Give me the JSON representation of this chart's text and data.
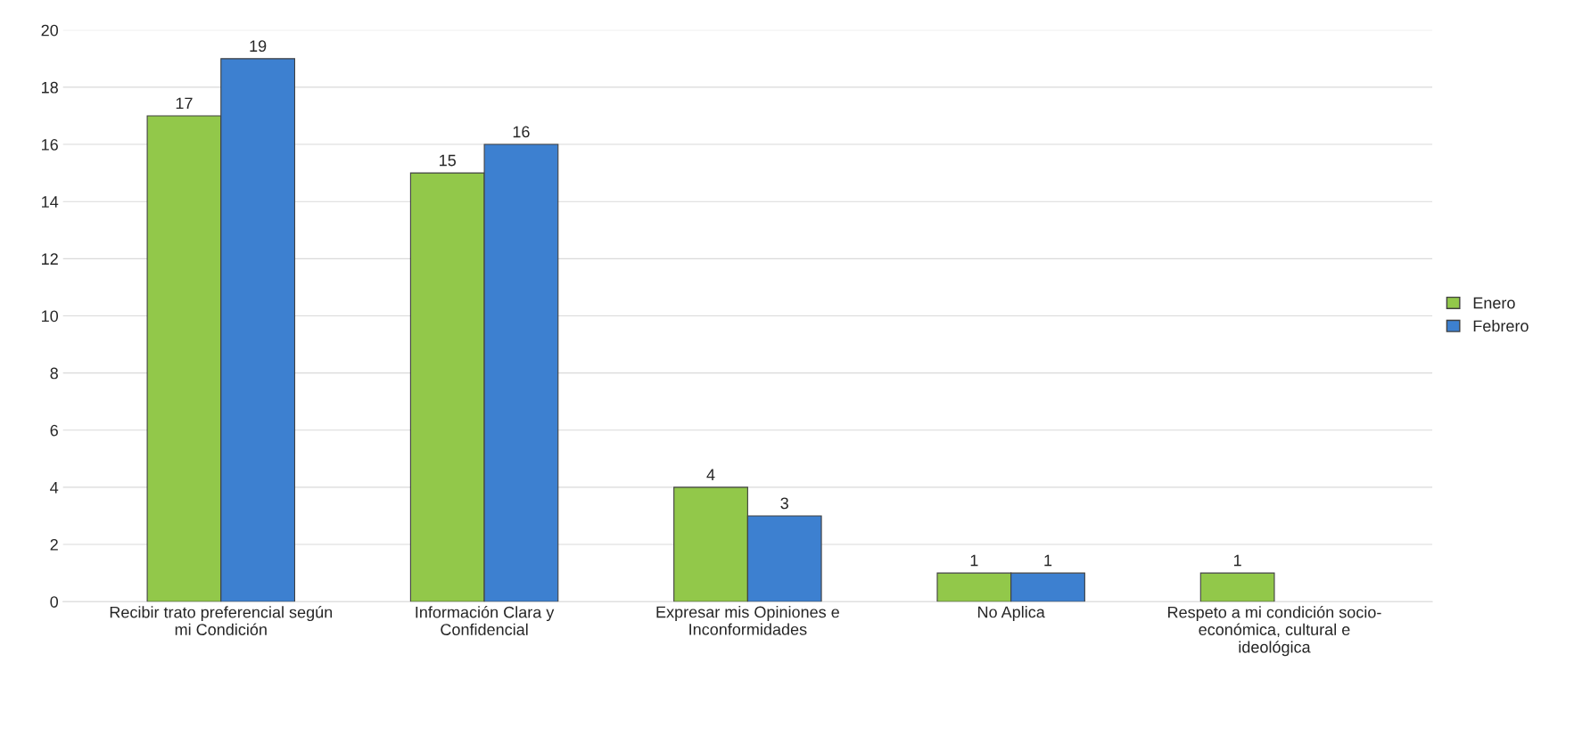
{
  "chart_data": {
    "type": "bar",
    "categories": [
      "Recibir trato preferencial según\nmi Condición",
      "Información Clara y\nConfidencial",
      "Expresar mis Opiniones e\nInconformidades",
      "No Aplica",
      "Respeto a mi condición socio-\neconómica, cultural e\nideológica"
    ],
    "series": [
      {
        "name": "Enero",
        "color": "#92c84a",
        "values": [
          17,
          15,
          4,
          1,
          1
        ]
      },
      {
        "name": "Febrero",
        "color": "#3d80d0",
        "values": [
          19,
          16,
          3,
          1,
          null
        ]
      }
    ],
    "ylim": [
      0,
      20
    ],
    "yticks": [
      0,
      2,
      4,
      6,
      8,
      10,
      12,
      14,
      16,
      18,
      20
    ],
    "grid": "y",
    "legend": "right",
    "data_labels": true
  }
}
